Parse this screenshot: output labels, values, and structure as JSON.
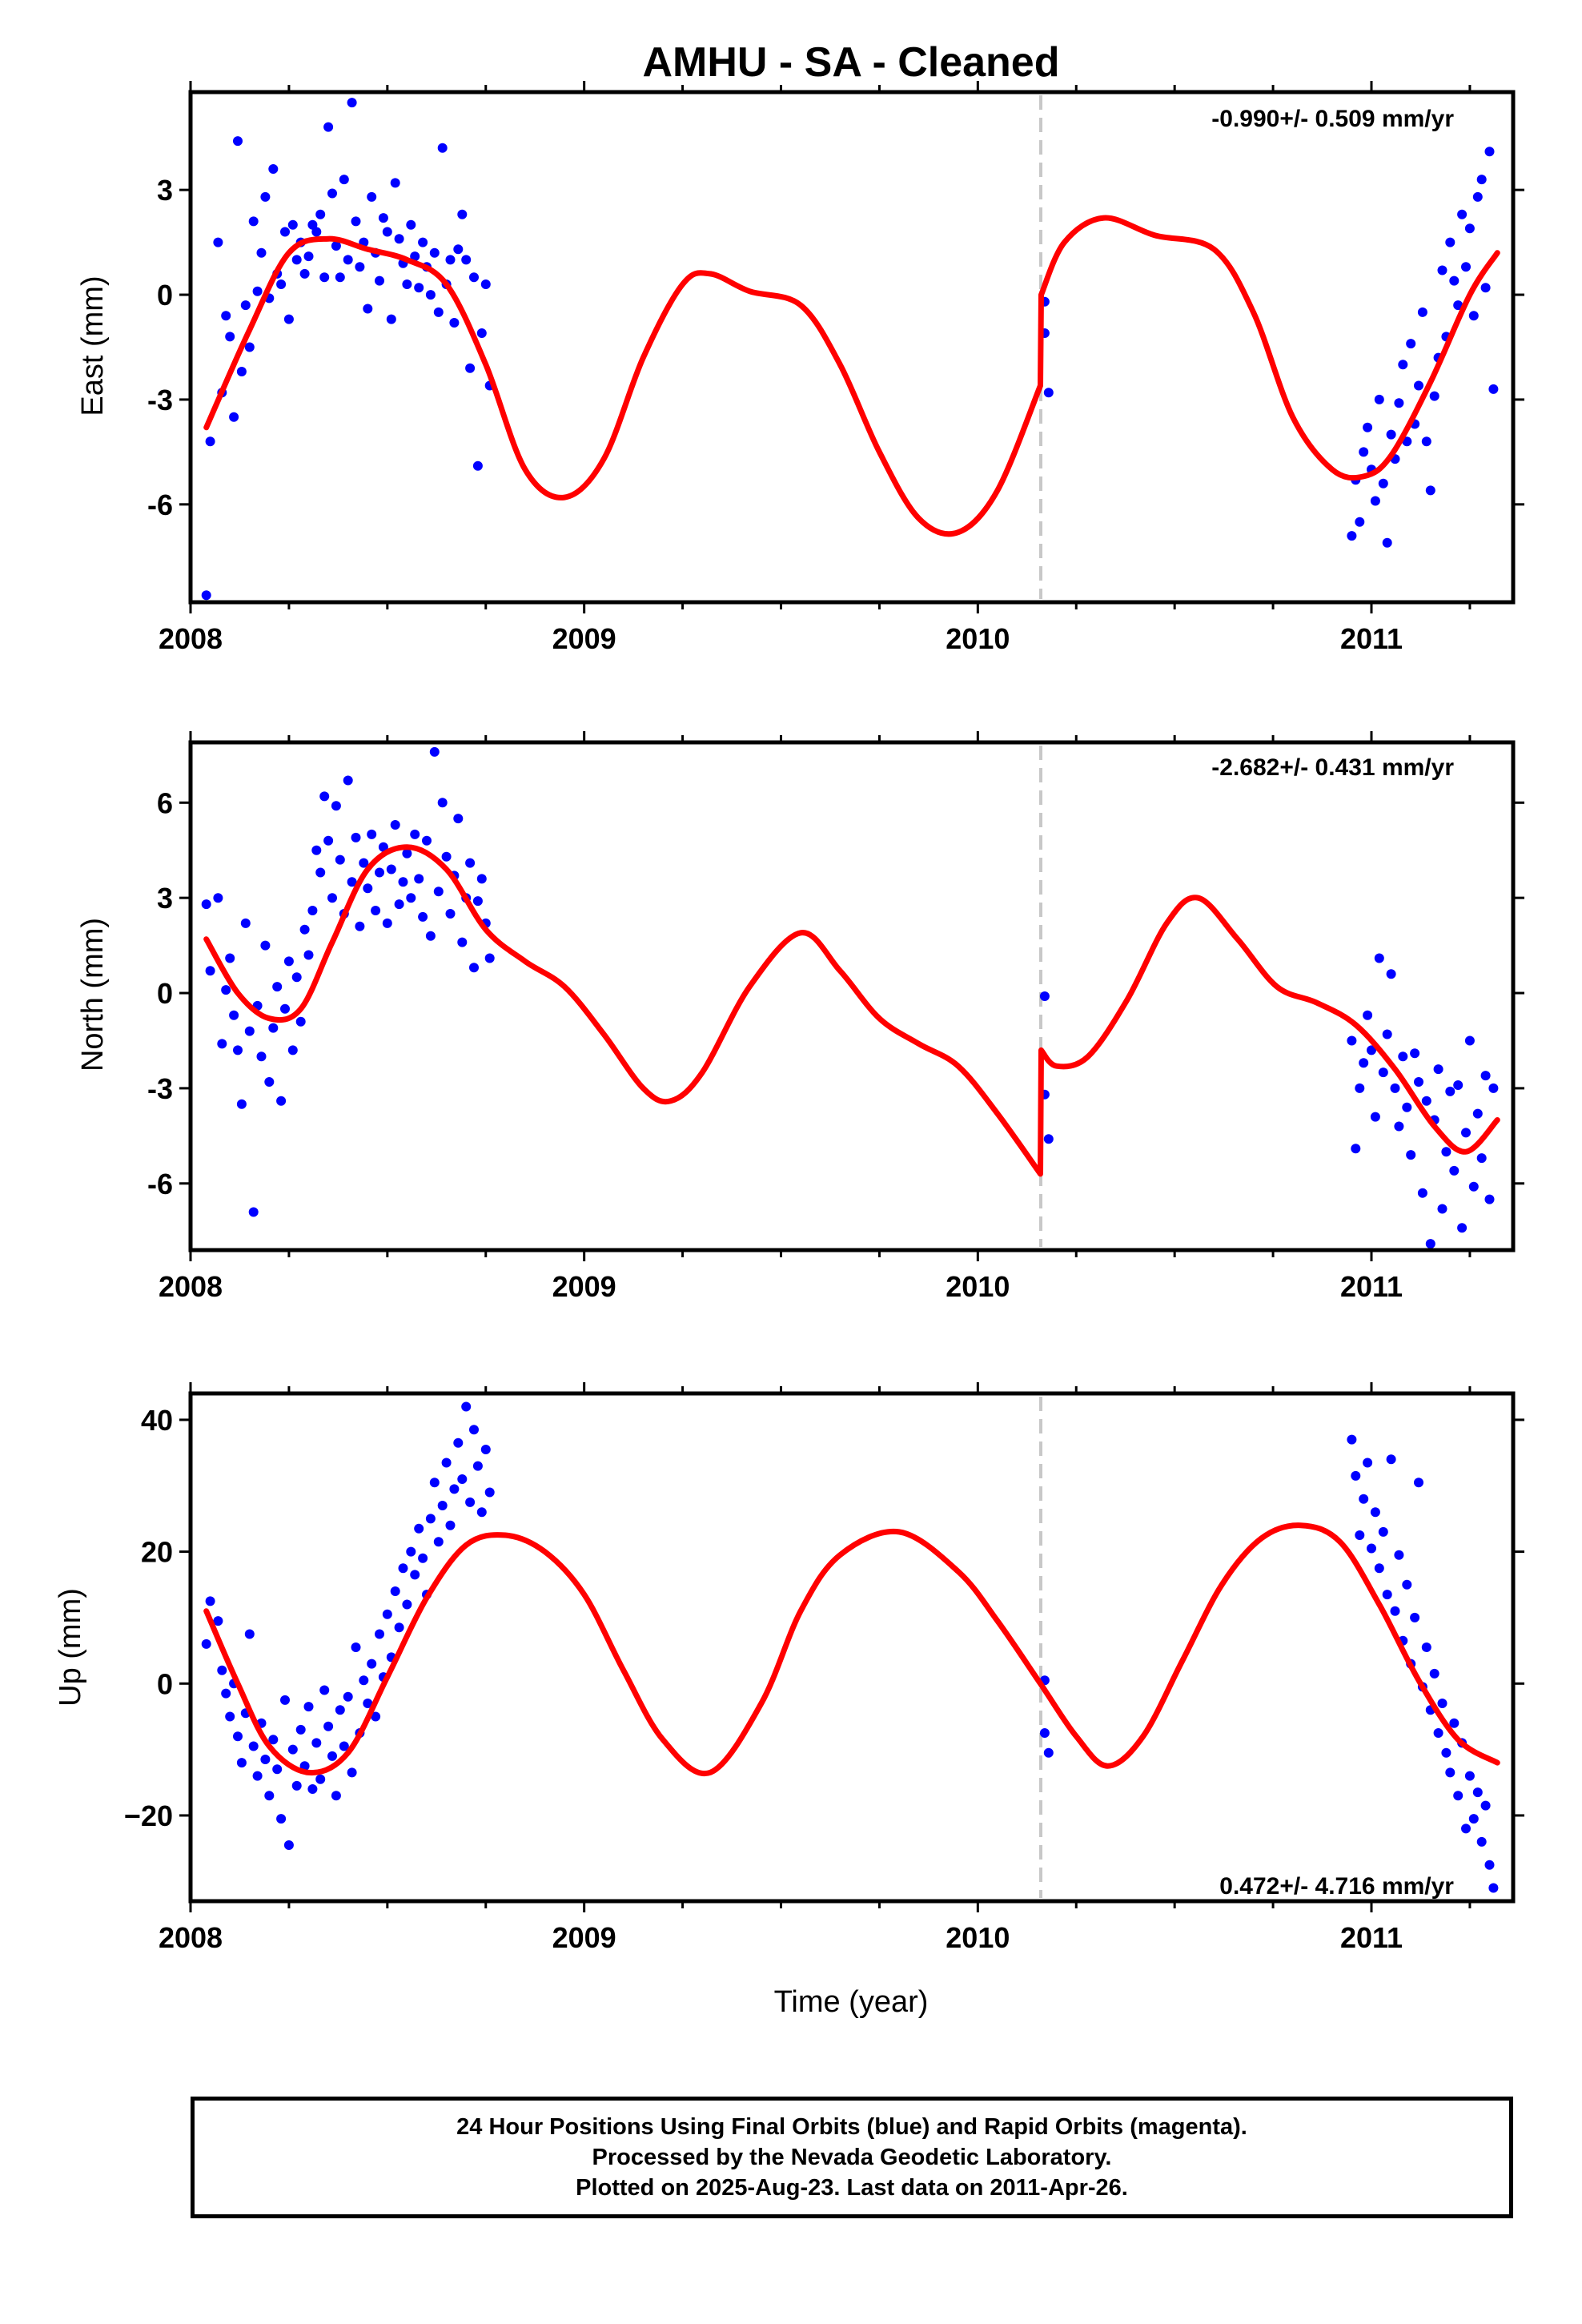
{
  "chart_data": {
    "type": "scatter",
    "title": "AMHU  - SA - Cleaned",
    "xlabel": "Time (year)",
    "xlim": [
      2008.0,
      2011.36
    ],
    "x_ticks": [
      2008,
      2009,
      2010,
      2011
    ],
    "x_tick_labels": [
      "2008",
      "2009",
      "2010",
      "2011"
    ],
    "offset_epoch": 2010.16,
    "colors": {
      "data": "#0000ff",
      "model": "#ff0000",
      "offset": "#c8c8c8"
    },
    "panels": [
      {
        "ylabel": "East (mm)",
        "ylim": [
          -8.8,
          5.8
        ],
        "y_ticks": [
          -6,
          -3,
          0,
          3
        ],
        "y_tick_labels": [
          "-6",
          "-3",
          "0",
          "3"
        ],
        "rate": "-0.990+/- 0.509 mm/yr",
        "rate_position": "top-right",
        "model": {
          "x": [
            2008.04,
            2008.15,
            2008.25,
            2008.35,
            2008.45,
            2008.55,
            2008.65,
            2008.75,
            2008.85,
            2008.95,
            2009.05,
            2009.15,
            2009.25,
            2009.32,
            2009.42,
            2009.55,
            2009.65,
            2009.75,
            2009.85,
            2009.95,
            2010.05,
            2010.159,
            2010.161,
            2010.22,
            2010.32,
            2010.45,
            2010.6,
            2010.7,
            2010.8,
            2010.9,
            2010.98,
            2011.05,
            2011.15,
            2011.25,
            2011.32
          ],
          "y": [
            -3.8,
            -1.0,
            1.2,
            1.6,
            1.3,
            1.0,
            0.3,
            -2.0,
            -5.0,
            -5.8,
            -4.7,
            -1.8,
            0.3,
            0.6,
            0.1,
            -0.3,
            -2.0,
            -4.5,
            -6.4,
            -6.8,
            -5.6,
            -2.6,
            0.0,
            1.5,
            2.2,
            1.7,
            1.3,
            -0.5,
            -3.5,
            -5.0,
            -5.2,
            -4.6,
            -2.5,
            0.0,
            1.2
          ]
        },
        "points": {
          "x": [
            2008.04,
            2008.05,
            2008.07,
            2008.08,
            2008.09,
            2008.1,
            2008.11,
            2008.12,
            2008.13,
            2008.14,
            2008.15,
            2008.16,
            2008.17,
            2008.18,
            2008.19,
            2008.2,
            2008.21,
            2008.22,
            2008.23,
            2008.24,
            2008.25,
            2008.26,
            2008.27,
            2008.28,
            2008.29,
            2008.3,
            2008.31,
            2008.32,
            2008.33,
            2008.34,
            2008.35,
            2008.36,
            2008.37,
            2008.38,
            2008.39,
            2008.4,
            2008.41,
            2008.42,
            2008.43,
            2008.44,
            2008.45,
            2008.46,
            2008.47,
            2008.48,
            2008.49,
            2008.5,
            2008.51,
            2008.52,
            2008.53,
            2008.54,
            2008.55,
            2008.56,
            2008.57,
            2008.58,
            2008.59,
            2008.6,
            2008.61,
            2008.62,
            2008.63,
            2008.64,
            2008.65,
            2008.66,
            2008.67,
            2008.68,
            2008.69,
            2008.7,
            2008.71,
            2008.72,
            2008.73,
            2008.74,
            2008.75,
            2008.76,
            2010.17,
            2010.17,
            2010.18,
            2010.95,
            2010.96,
            2010.97,
            2010.98,
            2010.99,
            2011.0,
            2011.01,
            2011.02,
            2011.03,
            2011.04,
            2011.05,
            2011.06,
            2011.07,
            2011.08,
            2011.09,
            2011.1,
            2011.11,
            2011.12,
            2011.13,
            2011.14,
            2011.15,
            2011.16,
            2011.17,
            2011.18,
            2011.19,
            2011.2,
            2011.21,
            2011.22,
            2011.23,
            2011.24,
            2011.25,
            2011.26,
            2011.27,
            2011.28,
            2011.29,
            2011.3,
            2011.31
          ],
          "y": [
            -8.6,
            -4.2,
            1.5,
            -2.8,
            -0.6,
            -1.2,
            -3.5,
            4.4,
            -2.2,
            -0.3,
            -1.5,
            2.1,
            0.1,
            1.2,
            2.8,
            -0.1,
            3.6,
            0.6,
            0.3,
            1.8,
            -0.7,
            2.0,
            1.0,
            1.5,
            0.6,
            1.1,
            2.0,
            1.8,
            2.3,
            0.5,
            4.8,
            2.9,
            1.4,
            0.5,
            3.3,
            1.0,
            5.5,
            2.1,
            0.8,
            1.5,
            -0.4,
            2.8,
            1.2,
            0.4,
            2.2,
            1.8,
            -0.7,
            3.2,
            1.6,
            0.9,
            0.3,
            2.0,
            1.1,
            0.2,
            1.5,
            0.8,
            0.0,
            1.2,
            -0.5,
            4.2,
            0.3,
            1.0,
            -0.8,
            1.3,
            2.3,
            1.0,
            -2.1,
            0.5,
            -4.9,
            -1.1,
            0.3,
            -2.6,
            -0.2,
            -1.1,
            -2.8,
            -6.9,
            -5.3,
            -6.5,
            -4.5,
            -3.8,
            -5.0,
            -5.9,
            -3.0,
            -5.4,
            -7.1,
            -4.0,
            -4.7,
            -3.1,
            -2.0,
            -4.2,
            -1.4,
            -3.7,
            -2.6,
            -0.5,
            -4.2,
            -5.6,
            -2.9,
            -1.8,
            0.7,
            -1.2,
            1.5,
            0.4,
            -0.3,
            2.3,
            0.8,
            1.9,
            -0.6,
            2.8,
            3.3,
            0.2,
            4.1,
            -2.7
          ]
        }
      },
      {
        "ylabel": "North (mm)",
        "ylim": [
          -8.1,
          7.9
        ],
        "y_ticks": [
          -6,
          -3,
          0,
          3,
          6
        ],
        "y_tick_labels": [
          "-6",
          "-3",
          "0",
          "3",
          "6"
        ],
        "rate": "-2.682+/- 0.431 mm/yr",
        "rate_position": "top-right",
        "model": {
          "x": [
            2008.04,
            2008.12,
            2008.2,
            2008.28,
            2008.36,
            2008.45,
            2008.55,
            2008.65,
            2008.75,
            2008.85,
            2008.95,
            2009.05,
            2009.15,
            2009.22,
            2009.3,
            2009.42,
            2009.55,
            2009.65,
            2009.75,
            2009.85,
            2009.95,
            2010.05,
            2010.159,
            2010.161,
            2010.2,
            2010.28,
            2010.38,
            2010.48,
            2010.56,
            2010.66,
            2010.76,
            2010.86,
            2010.96,
            2011.06,
            2011.16,
            2011.24,
            2011.32
          ],
          "y": [
            1.7,
            0.0,
            -0.8,
            -0.5,
            1.6,
            3.9,
            4.6,
            3.9,
            2.0,
            1.0,
            0.2,
            -1.3,
            -3.0,
            -3.4,
            -2.5,
            0.2,
            1.9,
            0.7,
            -0.8,
            -1.6,
            -2.3,
            -3.8,
            -5.7,
            -1.8,
            -2.3,
            -2.0,
            -0.2,
            2.2,
            3.0,
            1.7,
            0.2,
            -0.3,
            -1.0,
            -2.4,
            -4.2,
            -5.0,
            -4.0
          ]
        },
        "points": {
          "x": [
            2008.04,
            2008.05,
            2008.07,
            2008.08,
            2008.09,
            2008.1,
            2008.11,
            2008.12,
            2008.13,
            2008.14,
            2008.15,
            2008.16,
            2008.17,
            2008.18,
            2008.19,
            2008.2,
            2008.21,
            2008.22,
            2008.23,
            2008.24,
            2008.25,
            2008.26,
            2008.27,
            2008.28,
            2008.29,
            2008.3,
            2008.31,
            2008.32,
            2008.33,
            2008.34,
            2008.35,
            2008.36,
            2008.37,
            2008.38,
            2008.39,
            2008.4,
            2008.41,
            2008.42,
            2008.43,
            2008.44,
            2008.45,
            2008.46,
            2008.47,
            2008.48,
            2008.49,
            2008.5,
            2008.51,
            2008.52,
            2008.53,
            2008.54,
            2008.55,
            2008.56,
            2008.57,
            2008.58,
            2008.59,
            2008.6,
            2008.61,
            2008.62,
            2008.63,
            2008.64,
            2008.65,
            2008.66,
            2008.67,
            2008.68,
            2008.69,
            2008.7,
            2008.71,
            2008.72,
            2008.73,
            2008.74,
            2008.75,
            2008.76,
            2010.17,
            2010.17,
            2010.18,
            2010.95,
            2010.96,
            2010.97,
            2010.98,
            2010.99,
            2011.0,
            2011.01,
            2011.02,
            2011.03,
            2011.04,
            2011.05,
            2011.06,
            2011.07,
            2011.08,
            2011.09,
            2011.1,
            2011.11,
            2011.12,
            2011.13,
            2011.14,
            2011.15,
            2011.16,
            2011.17,
            2011.18,
            2011.19,
            2011.2,
            2011.21,
            2011.22,
            2011.23,
            2011.24,
            2011.25,
            2011.26,
            2011.27,
            2011.28,
            2011.29,
            2011.3,
            2011.31
          ],
          "y": [
            2.8,
            0.7,
            3.0,
            -1.6,
            0.1,
            1.1,
            -0.7,
            -1.8,
            -3.5,
            2.2,
            -1.2,
            -6.9,
            -0.4,
            -2.0,
            1.5,
            -2.8,
            -1.1,
            0.2,
            -3.4,
            -0.5,
            1.0,
            -1.8,
            0.5,
            -0.9,
            2.0,
            1.2,
            2.6,
            4.5,
            3.8,
            6.2,
            4.8,
            3.0,
            5.9,
            4.2,
            2.5,
            6.7,
            3.5,
            4.9,
            2.1,
            4.1,
            3.3,
            5.0,
            2.6,
            3.8,
            4.6,
            2.2,
            3.9,
            5.3,
            2.8,
            3.5,
            4.4,
            3.0,
            5.0,
            3.6,
            2.4,
            4.8,
            1.8,
            7.6,
            3.2,
            6.0,
            4.3,
            2.5,
            3.7,
            5.5,
            1.6,
            3.0,
            4.1,
            0.8,
            2.9,
            3.6,
            2.2,
            1.1,
            -0.1,
            -3.2,
            -4.6,
            -1.5,
            -4.9,
            -3.0,
            -2.2,
            -0.7,
            -1.8,
            -3.9,
            1.1,
            -2.5,
            -1.3,
            0.6,
            -3.0,
            -4.2,
            -2.0,
            -3.6,
            -5.1,
            -1.9,
            -2.8,
            -6.3,
            -3.4,
            -7.9,
            -4.0,
            -2.4,
            -6.8,
            -5.0,
            -3.1,
            -5.6,
            -2.9,
            -7.4,
            -4.4,
            -1.5,
            -6.1,
            -3.8,
            -5.2,
            -2.6,
            -6.5,
            -3.0
          ]
        }
      },
      {
        "ylabel": "Up (mm)",
        "ylim": [
          -33,
          44
        ],
        "y_ticks": [
          -20,
          0,
          20,
          40
        ],
        "y_tick_labels": [
          "−20",
          "0",
          "20",
          "40"
        ],
        "rate": "0.472+/- 4.716 mm/yr",
        "rate_position": "bottom-right",
        "model": {
          "x": [
            2008.04,
            2008.12,
            2008.2,
            2008.3,
            2008.4,
            2008.5,
            2008.6,
            2008.7,
            2008.8,
            2008.9,
            2009.0,
            2009.1,
            2009.2,
            2009.32,
            2009.45,
            2009.55,
            2009.65,
            2009.8,
            2009.95,
            2010.05,
            2010.159,
            2010.25,
            2010.33,
            2010.42,
            2010.52,
            2010.62,
            2010.72,
            2010.82,
            2010.92,
            2011.02,
            2011.12,
            2011.22,
            2011.32
          ],
          "y": [
            11.0,
            0.0,
            -9.5,
            -13.5,
            -10.5,
            1.0,
            13.0,
            21.0,
            22.5,
            20.0,
            13.5,
            2.0,
            -8.5,
            -13.5,
            -3.0,
            11.0,
            19.5,
            23.0,
            17.0,
            9.5,
            0.0,
            -8.0,
            -12.5,
            -8.0,
            3.5,
            15.0,
            22.0,
            24.0,
            21.5,
            12.0,
            0.5,
            -8.5,
            -12.0
          ]
        },
        "points": {
          "x": [
            2008.04,
            2008.05,
            2008.07,
            2008.08,
            2008.09,
            2008.1,
            2008.11,
            2008.12,
            2008.13,
            2008.14,
            2008.15,
            2008.16,
            2008.17,
            2008.18,
            2008.19,
            2008.2,
            2008.21,
            2008.22,
            2008.23,
            2008.24,
            2008.25,
            2008.26,
            2008.27,
            2008.28,
            2008.29,
            2008.3,
            2008.31,
            2008.32,
            2008.33,
            2008.34,
            2008.35,
            2008.36,
            2008.37,
            2008.38,
            2008.39,
            2008.4,
            2008.41,
            2008.42,
            2008.43,
            2008.44,
            2008.45,
            2008.46,
            2008.47,
            2008.48,
            2008.49,
            2008.5,
            2008.51,
            2008.52,
            2008.53,
            2008.54,
            2008.55,
            2008.56,
            2008.57,
            2008.58,
            2008.59,
            2008.6,
            2008.61,
            2008.62,
            2008.63,
            2008.64,
            2008.65,
            2008.66,
            2008.67,
            2008.68,
            2008.69,
            2008.7,
            2008.71,
            2008.72,
            2008.73,
            2008.74,
            2008.75,
            2008.76,
            2010.17,
            2010.17,
            2010.18,
            2010.95,
            2010.96,
            2010.97,
            2010.98,
            2010.99,
            2011.0,
            2011.01,
            2011.02,
            2011.03,
            2011.04,
            2011.05,
            2011.06,
            2011.07,
            2011.08,
            2011.09,
            2011.1,
            2011.11,
            2011.12,
            2011.13,
            2011.14,
            2011.15,
            2011.16,
            2011.17,
            2011.18,
            2011.19,
            2011.2,
            2011.21,
            2011.22,
            2011.23,
            2011.24,
            2011.25,
            2011.26,
            2011.27,
            2011.28,
            2011.29,
            2011.3,
            2011.31
          ],
          "y": [
            6.0,
            12.5,
            9.5,
            2.0,
            -1.5,
            -5.0,
            0.0,
            -8.0,
            -12.0,
            -4.5,
            7.5,
            -9.5,
            -14.0,
            -6.0,
            -11.5,
            -17.0,
            -8.5,
            -13.0,
            -20.5,
            -2.5,
            -24.5,
            -10.0,
            -15.5,
            -7.0,
            -12.5,
            -3.5,
            -16.0,
            -9.0,
            -14.5,
            -1.0,
            -6.5,
            -11.0,
            -17.0,
            -4.0,
            -9.5,
            -2.0,
            -13.5,
            5.5,
            -7.5,
            0.5,
            -3.0,
            3.0,
            -5.0,
            7.5,
            1.0,
            10.5,
            4.0,
            14.0,
            8.5,
            17.5,
            12.0,
            20.0,
            16.5,
            23.5,
            19.0,
            13.5,
            25.0,
            30.5,
            21.5,
            27.0,
            33.5,
            24.0,
            29.5,
            36.5,
            31.0,
            42.0,
            27.5,
            38.5,
            33.0,
            26.0,
            35.5,
            29.0,
            0.5,
            -7.5,
            -10.5,
            37.0,
            31.5,
            22.5,
            28.0,
            33.5,
            20.5,
            26.0,
            17.5,
            23.0,
            13.5,
            34.0,
            11.0,
            19.5,
            6.5,
            15.0,
            3.0,
            10.0,
            30.5,
            -0.5,
            5.5,
            -4.0,
            1.5,
            -7.5,
            -3.0,
            -10.5,
            -13.5,
            -6.0,
            -17.0,
            -9.0,
            -22.0,
            -14.0,
            -20.5,
            -16.5,
            -24.0,
            -18.5,
            -27.5,
            -31.0
          ]
        }
      }
    ]
  },
  "footer": {
    "line1": "24 Hour Positions Using Final Orbits (blue) and Rapid Orbits (magenta).",
    "line2": "Processed by the Nevada Geodetic Laboratory.",
    "line3": "Plotted on 2025-Aug-23. Last data on 2011-Apr-26."
  }
}
